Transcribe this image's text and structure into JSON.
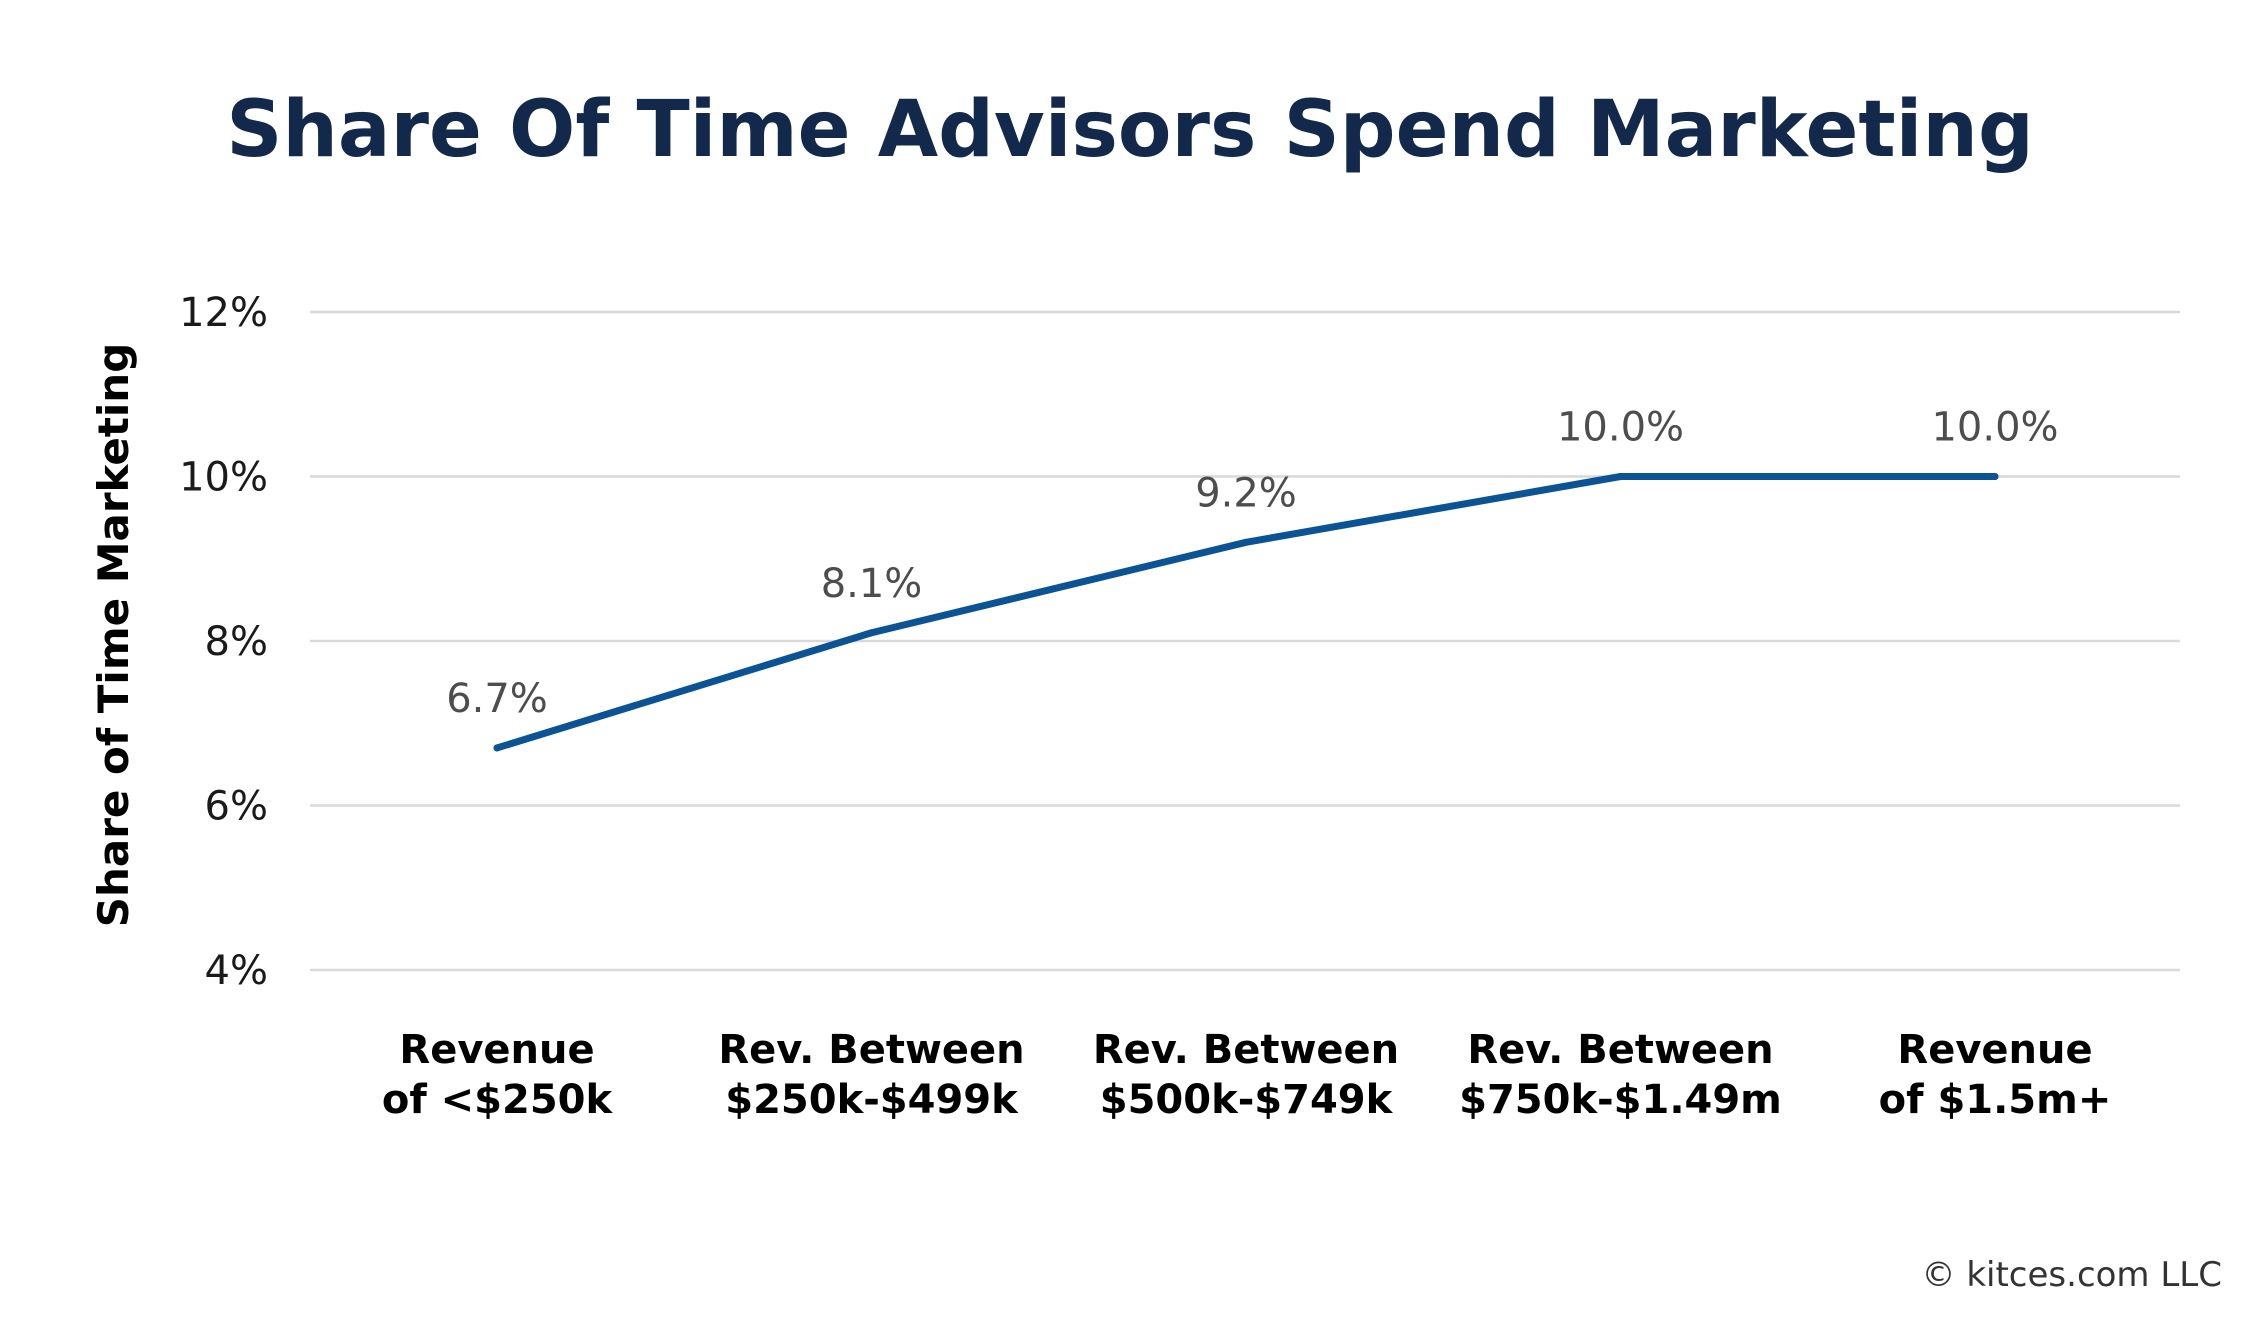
{
  "chart_data": {
    "type": "line",
    "title": "Share Of Time Advisors Spend Marketing",
    "ylabel": "Share of Time Marketing",
    "xlabel": "",
    "categories": [
      [
        "Revenue",
        "of <$250k"
      ],
      [
        "Rev. Between",
        "$250k-$499k"
      ],
      [
        "Rev. Between",
        "$500k-$749k"
      ],
      [
        "Rev. Between",
        "$750k-$1.49m"
      ],
      [
        "Revenue",
        "of $1.5m+"
      ]
    ],
    "series": [
      {
        "values": [
          6.7,
          8.1,
          9.2,
          10.0,
          10.0
        ],
        "data_labels": [
          "6.7%",
          "8.1%",
          "9.2%",
          "10.0%",
          "10.0%"
        ]
      }
    ],
    "ylim": [
      4,
      12
    ],
    "yticks": [
      4,
      6,
      8,
      10,
      12
    ],
    "ytick_labels": [
      "4%",
      "6%",
      "8%",
      "10%",
      "12%"
    ],
    "grid": true,
    "legend": "none"
  },
  "credit": "© kitces.com LLC",
  "colors": {
    "title": "#13294b",
    "line": "#0b5394",
    "grid": "#d9d9d9"
  }
}
